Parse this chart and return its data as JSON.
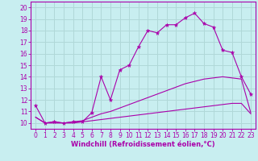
{
  "xlabel": "Windchill (Refroidissement éolien,°C)",
  "xlim": [
    -0.5,
    23.5
  ],
  "ylim": [
    9.5,
    20.5
  ],
  "xticks": [
    0,
    1,
    2,
    3,
    4,
    5,
    6,
    7,
    8,
    9,
    10,
    11,
    12,
    13,
    14,
    15,
    16,
    17,
    18,
    19,
    20,
    21,
    22,
    23
  ],
  "yticks": [
    10,
    11,
    12,
    13,
    14,
    15,
    16,
    17,
    18,
    19,
    20
  ],
  "background_color": "#c8eef0",
  "grid_color": "#b0d8d8",
  "line_color": "#aa00aa",
  "line1_x": [
    0,
    1,
    2,
    3,
    4,
    5,
    6,
    7,
    8,
    9,
    10,
    11,
    12,
    13,
    14,
    15,
    16,
    17,
    18,
    19,
    20,
    21,
    22,
    23
  ],
  "line1_y": [
    11.5,
    10.0,
    10.1,
    10.0,
    10.1,
    10.1,
    10.9,
    14.0,
    12.0,
    14.6,
    15.0,
    16.6,
    18.0,
    17.8,
    18.5,
    18.5,
    19.1,
    19.5,
    18.6,
    18.3,
    16.3,
    16.1,
    14.0,
    12.5
  ],
  "line2_x": [
    0,
    1,
    2,
    3,
    4,
    5,
    6,
    7,
    8,
    9,
    10,
    11,
    12,
    13,
    14,
    15,
    16,
    17,
    18,
    19,
    20,
    21,
    22,
    23
  ],
  "line2_y": [
    10.5,
    10.0,
    10.1,
    10.0,
    10.1,
    10.2,
    10.5,
    10.8,
    11.0,
    11.3,
    11.6,
    11.9,
    12.2,
    12.5,
    12.8,
    13.1,
    13.4,
    13.6,
    13.8,
    13.9,
    14.0,
    13.9,
    13.8,
    10.9
  ],
  "line3_x": [
    0,
    1,
    2,
    3,
    4,
    5,
    6,
    7,
    8,
    9,
    10,
    11,
    12,
    13,
    14,
    15,
    16,
    17,
    18,
    19,
    20,
    21,
    22,
    23
  ],
  "line3_y": [
    10.5,
    10.0,
    10.0,
    10.0,
    10.0,
    10.1,
    10.2,
    10.3,
    10.4,
    10.5,
    10.6,
    10.7,
    10.8,
    10.9,
    11.0,
    11.1,
    11.2,
    11.3,
    11.4,
    11.5,
    11.6,
    11.7,
    11.7,
    10.8
  ],
  "tick_fontsize": 5.5,
  "xlabel_fontsize": 6.0
}
